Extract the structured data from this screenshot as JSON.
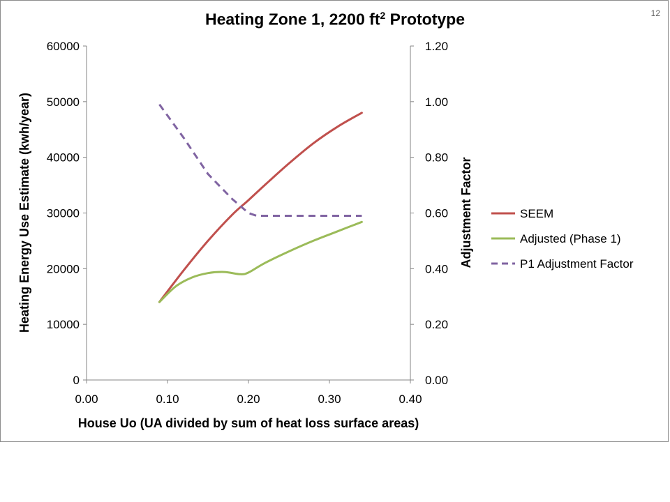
{
  "page": {
    "number": "12"
  },
  "chart_data": {
    "type": "line",
    "title": {
      "main": "Heating Zone 1, 2200 ft",
      "superscript": "2",
      "suffix": " Prototype"
    },
    "xlabel": "House Uo (UA divided by sum of heat loss surface areas)",
    "ylabel": "Heating Energy Use Estimate (kwh/year)",
    "y2label": "Adjustment Factor",
    "xlim": [
      0,
      0.4
    ],
    "ylim": [
      0,
      60000
    ],
    "y2lim": [
      0,
      1.2
    ],
    "x_ticks": [
      "0.00",
      "0.10",
      "0.20",
      "0.30",
      "0.40"
    ],
    "y_ticks": [
      "0",
      "10000",
      "20000",
      "30000",
      "40000",
      "50000",
      "60000"
    ],
    "y2_ticks": [
      "0.00",
      "0.20",
      "0.40",
      "0.60",
      "0.80",
      "1.00",
      "1.20"
    ],
    "grid": false,
    "legend_position": "right",
    "series": [
      {
        "name": "SEEM",
        "axis": "left",
        "color": "#c0504d",
        "dash": "solid",
        "x": [
          0.09,
          0.12,
          0.15,
          0.18,
          0.2,
          0.22,
          0.25,
          0.28,
          0.31,
          0.34
        ],
        "y": [
          14000,
          19700,
          25000,
          29700,
          32300,
          35000,
          38900,
          42500,
          45500,
          48000
        ]
      },
      {
        "name": "Adjusted (Phase 1)",
        "axis": "left",
        "color": "#9bbb59",
        "dash": "solid",
        "x": [
          0.09,
          0.11,
          0.13,
          0.15,
          0.17,
          0.19,
          0.2,
          0.22,
          0.25,
          0.28,
          0.31,
          0.34
        ],
        "y": [
          14000,
          16800,
          18400,
          19200,
          19400,
          19000,
          19300,
          21000,
          23100,
          25000,
          26700,
          28400
        ]
      },
      {
        "name": "P1 Adjustment Factor",
        "axis": "right",
        "color": "#8064a2",
        "dash": "dashed",
        "x": [
          0.09,
          0.12,
          0.15,
          0.18,
          0.2,
          0.21,
          0.25,
          0.3,
          0.34
        ],
        "y": [
          0.99,
          0.87,
          0.74,
          0.65,
          0.6,
          0.59,
          0.59,
          0.59,
          0.59
        ]
      }
    ]
  }
}
